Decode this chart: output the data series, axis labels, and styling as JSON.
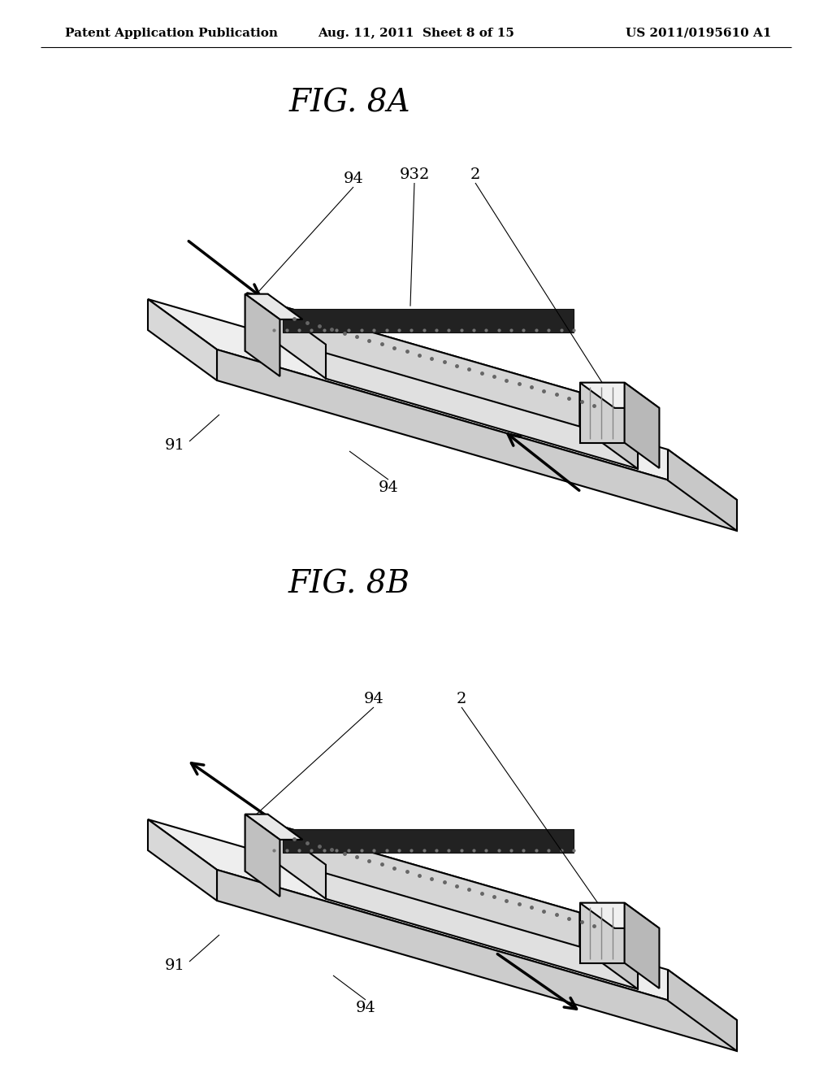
{
  "background_color": "#ffffff",
  "header_left": "Patent Application Publication",
  "header_center": "Aug. 11, 2011  Sheet 8 of 15",
  "header_right": "US 2011/0195610 A1",
  "fig8a_title": "FIG. 8A",
  "fig8b_title": "FIG. 8B",
  "header_font_size": 11,
  "title_font_size": 28,
  "label_font_size": 14,
  "line_color": "#000000",
  "line_width": 1.5
}
